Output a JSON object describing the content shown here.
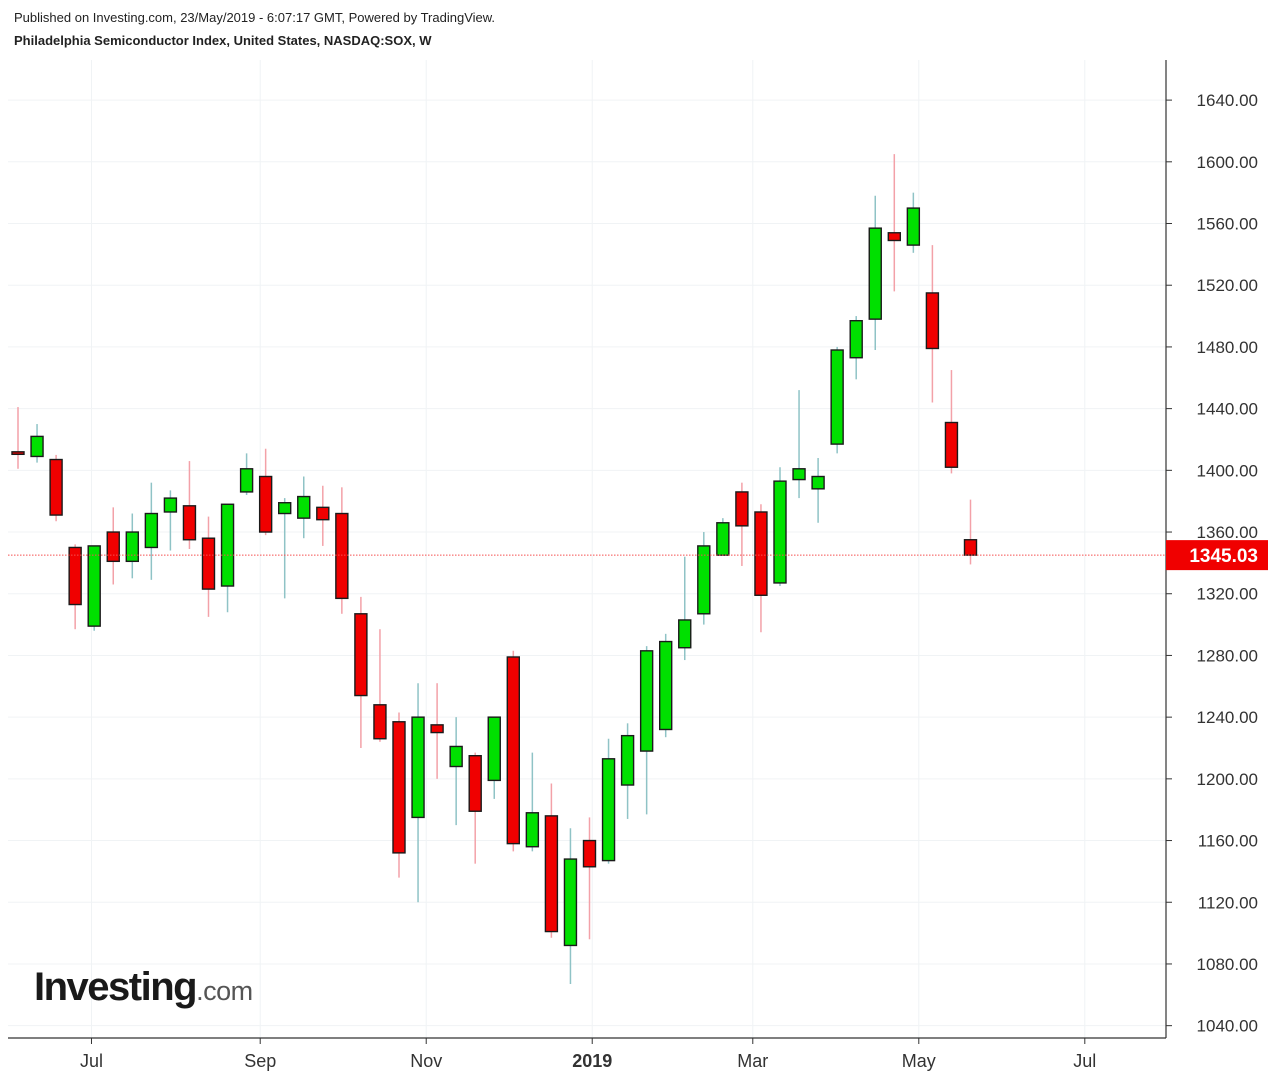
{
  "header": {
    "published_line": "Published on Investing.com, 23/May/2019 - 6:07:17 GMT, Powered by TradingView.",
    "symbol_line": "Philadelphia Semiconductor Index, United States, NASDAQ:SOX, W"
  },
  "logo": {
    "main": "Investing",
    "suffix": ".com"
  },
  "colors": {
    "up": "#00e000",
    "down": "#f00000",
    "up_wick": "#8fc3c6",
    "down_wick": "#f3a1a8",
    "current_price_line": "#f55050",
    "current_price_badge": "#f00000",
    "grid": "#f0f3f5"
  },
  "chart_data": {
    "type": "candlestick",
    "title": "Philadelphia Semiconductor Index, United States, NASDAQ:SOX, W",
    "interval": "W",
    "grid": true,
    "ylim": [
      1032,
      1666
    ],
    "y_ticks": [
      1040,
      1080,
      1120,
      1160,
      1200,
      1240,
      1280,
      1320,
      1360,
      1400,
      1440,
      1480,
      1520,
      1560,
      1600,
      1640
    ],
    "y_tick_labels": [
      "1040.00",
      "1080.00",
      "1120.00",
      "1160.00",
      "1200.00",
      "1240.00",
      "1280.00",
      "1320.00",
      "1360.00",
      "1400.00",
      "1440.00",
      "1480.00",
      "1520.00",
      "1560.00",
      "1600.00",
      "1640.00"
    ],
    "x_ticks": [
      {
        "label": "Jul",
        "date": "2018-07-01",
        "bold": false
      },
      {
        "label": "Sep",
        "date": "2018-09-01",
        "bold": false
      },
      {
        "label": "Nov",
        "date": "2018-11-01",
        "bold": false
      },
      {
        "label": "2019",
        "date": "2019-01-01",
        "bold": true
      },
      {
        "label": "Mar",
        "date": "2019-03-01",
        "bold": false
      },
      {
        "label": "May",
        "date": "2019-05-01",
        "bold": false
      },
      {
        "label": "Jul",
        "date": "2019-07-01",
        "bold": false
      }
    ],
    "last_price": 1345.03,
    "last_price_label": "1345.03",
    "candles": [
      {
        "date": "2018-06-04",
        "open": 1412,
        "high": 1441,
        "low": 1401,
        "close": 1411
      },
      {
        "date": "2018-06-11",
        "open": 1409,
        "high": 1430,
        "low": 1405,
        "close": 1422
      },
      {
        "date": "2018-06-18",
        "open": 1407,
        "high": 1410,
        "low": 1367,
        "close": 1371
      },
      {
        "date": "2018-06-25",
        "open": 1350,
        "high": 1352,
        "low": 1297,
        "close": 1313
      },
      {
        "date": "2018-07-02",
        "open": 1299,
        "high": 1351,
        "low": 1296,
        "close": 1351
      },
      {
        "date": "2018-07-09",
        "open": 1360,
        "high": 1376,
        "low": 1326,
        "close": 1341
      },
      {
        "date": "2018-07-16",
        "open": 1341,
        "high": 1372,
        "low": 1330,
        "close": 1360
      },
      {
        "date": "2018-07-23",
        "open": 1350,
        "high": 1392,
        "low": 1329,
        "close": 1372
      },
      {
        "date": "2018-07-30",
        "open": 1373,
        "high": 1387,
        "low": 1348,
        "close": 1382
      },
      {
        "date": "2018-08-06",
        "open": 1377,
        "high": 1406,
        "low": 1349,
        "close": 1355
      },
      {
        "date": "2018-08-13",
        "open": 1356,
        "high": 1370,
        "low": 1305,
        "close": 1323
      },
      {
        "date": "2018-08-20",
        "open": 1325,
        "high": 1378,
        "low": 1308,
        "close": 1378
      },
      {
        "date": "2018-08-27",
        "open": 1386,
        "high": 1411,
        "low": 1384,
        "close": 1401
      },
      {
        "date": "2018-09-03",
        "open": 1396,
        "high": 1414,
        "low": 1358,
        "close": 1360
      },
      {
        "date": "2018-09-10",
        "open": 1372,
        "high": 1382,
        "low": 1317,
        "close": 1379
      },
      {
        "date": "2018-09-17",
        "open": 1369,
        "high": 1396,
        "low": 1356,
        "close": 1383
      },
      {
        "date": "2018-09-24",
        "open": 1376,
        "high": 1390,
        "low": 1351,
        "close": 1368
      },
      {
        "date": "2018-10-01",
        "open": 1372,
        "high": 1389,
        "low": 1307,
        "close": 1317
      },
      {
        "date": "2018-10-08",
        "open": 1307,
        "high": 1318,
        "low": 1220,
        "close": 1254
      },
      {
        "date": "2018-10-15",
        "open": 1248,
        "high": 1297,
        "low": 1224,
        "close": 1226
      },
      {
        "date": "2018-10-22",
        "open": 1237,
        "high": 1243,
        "low": 1136,
        "close": 1152
      },
      {
        "date": "2018-10-29",
        "open": 1175,
        "high": 1262,
        "low": 1120,
        "close": 1240
      },
      {
        "date": "2018-11-05",
        "open": 1235,
        "high": 1262,
        "low": 1200,
        "close": 1230
      },
      {
        "date": "2018-11-12",
        "open": 1208,
        "high": 1240,
        "low": 1170,
        "close": 1221
      },
      {
        "date": "2018-11-19",
        "open": 1215,
        "high": 1217,
        "low": 1145,
        "close": 1179
      },
      {
        "date": "2018-11-26",
        "open": 1199,
        "high": 1240,
        "low": 1187,
        "close": 1240
      },
      {
        "date": "2018-12-03",
        "open": 1279,
        "high": 1283,
        "low": 1153,
        "close": 1158
      },
      {
        "date": "2018-12-10",
        "open": 1156,
        "high": 1217,
        "low": 1153,
        "close": 1178
      },
      {
        "date": "2018-12-17",
        "open": 1176,
        "high": 1197,
        "low": 1097,
        "close": 1101
      },
      {
        "date": "2018-12-24",
        "open": 1092,
        "high": 1168,
        "low": 1067,
        "close": 1148
      },
      {
        "date": "2018-12-31",
        "open": 1160,
        "high": 1175,
        "low": 1096,
        "close": 1143
      },
      {
        "date": "2019-01-07",
        "open": 1147,
        "high": 1226,
        "low": 1145,
        "close": 1213
      },
      {
        "date": "2019-01-14",
        "open": 1196,
        "high": 1236,
        "low": 1174,
        "close": 1228
      },
      {
        "date": "2019-01-21",
        "open": 1218,
        "high": 1286,
        "low": 1177,
        "close": 1283
      },
      {
        "date": "2019-01-28",
        "open": 1232,
        "high": 1294,
        "low": 1227,
        "close": 1289
      },
      {
        "date": "2019-02-04",
        "open": 1285,
        "high": 1344,
        "low": 1277,
        "close": 1303
      },
      {
        "date": "2019-02-11",
        "open": 1307,
        "high": 1360,
        "low": 1300,
        "close": 1351
      },
      {
        "date": "2019-02-18",
        "open": 1345,
        "high": 1369,
        "low": 1345,
        "close": 1366
      },
      {
        "date": "2019-02-25",
        "open": 1386,
        "high": 1392,
        "low": 1338,
        "close": 1364
      },
      {
        "date": "2019-03-04",
        "open": 1373,
        "high": 1378,
        "low": 1295,
        "close": 1319
      },
      {
        "date": "2019-03-11",
        "open": 1327,
        "high": 1402,
        "low": 1325,
        "close": 1393
      },
      {
        "date": "2019-03-18",
        "open": 1394,
        "high": 1452,
        "low": 1382,
        "close": 1401
      },
      {
        "date": "2019-03-25",
        "open": 1388,
        "high": 1408,
        "low": 1366,
        "close": 1396
      },
      {
        "date": "2019-04-01",
        "open": 1417,
        "high": 1480,
        "low": 1411,
        "close": 1478
      },
      {
        "date": "2019-04-08",
        "open": 1473,
        "high": 1500,
        "low": 1459,
        "close": 1497
      },
      {
        "date": "2019-04-15",
        "open": 1498,
        "high": 1578,
        "low": 1478,
        "close": 1557
      },
      {
        "date": "2019-04-22",
        "open": 1554,
        "high": 1605,
        "low": 1516,
        "close": 1549
      },
      {
        "date": "2019-04-29",
        "open": 1546,
        "high": 1580,
        "low": 1541,
        "close": 1570
      },
      {
        "date": "2019-05-06",
        "open": 1515,
        "high": 1546,
        "low": 1444,
        "close": 1479
      },
      {
        "date": "2019-05-13",
        "open": 1431,
        "high": 1465,
        "low": 1398,
        "close": 1402
      },
      {
        "date": "2019-05-20",
        "open": 1355,
        "high": 1381,
        "low": 1339,
        "close": 1345.03
      }
    ]
  }
}
